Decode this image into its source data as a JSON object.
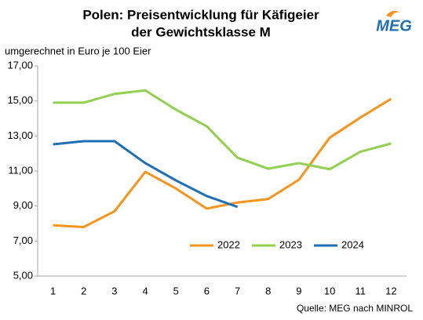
{
  "chart_data": {
    "type": "line",
    "title": [
      "Polen: Preisentwicklung für Käfigeier",
      "der Gewichtsklasse M"
    ],
    "subtitle": "umgerechnet in Euro je 100 Eier",
    "logo": "MEG",
    "source": "Quelle: MEG nach MINROL",
    "categories": [
      "1",
      "2",
      "3",
      "4",
      "5",
      "6",
      "7",
      "8",
      "9",
      "10",
      "11",
      "12"
    ],
    "series": [
      {
        "name": "2022",
        "color": "#f7941d",
        "values": [
          7.9,
          7.8,
          8.7,
          10.95,
          10.0,
          8.85,
          9.2,
          9.4,
          10.5,
          12.9,
          14.05,
          15.12
        ]
      },
      {
        "name": "2023",
        "color": "#92d050",
        "values": [
          14.9,
          14.9,
          15.4,
          15.6,
          14.5,
          13.55,
          11.76,
          11.13,
          11.45,
          11.1,
          12.1,
          12.57
        ]
      },
      {
        "name": "2024",
        "color": "#1f6fb5",
        "values": [
          12.52,
          12.7,
          12.7,
          11.45,
          10.46,
          9.57,
          8.95,
          null,
          null,
          null,
          null,
          null
        ]
      }
    ],
    "ylim": [
      5,
      17
    ],
    "yticks": [
      {
        "value": 5,
        "label": "5,00"
      },
      {
        "value": 7,
        "label": "7,00"
      },
      {
        "value": 9,
        "label": "9,00"
      },
      {
        "value": 11,
        "label": "11,00"
      },
      {
        "value": 13,
        "label": "13,00"
      },
      {
        "value": 15,
        "label": "15,00"
      },
      {
        "value": 17,
        "label": "17,00"
      }
    ],
    "grid": false,
    "legend": "bottom-right"
  }
}
